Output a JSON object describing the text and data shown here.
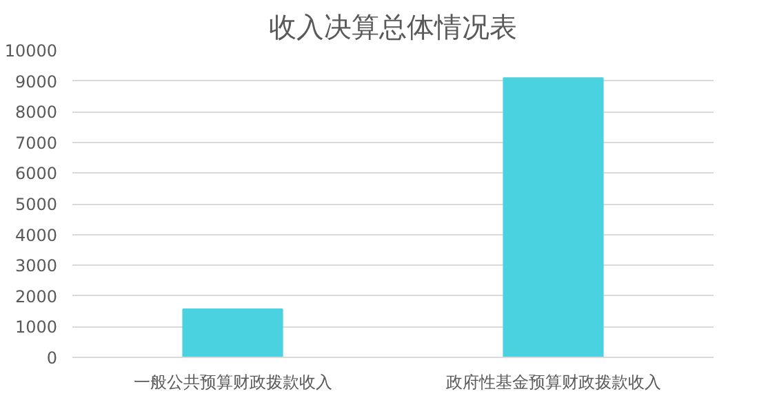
{
  "chart_data": {
    "type": "bar",
    "title": "收入决算总体情况表",
    "categories": [
      "一般公共预算财政拨款收入",
      "政府性基金预算财政拨款收入"
    ],
    "values": [
      1570,
      9100
    ],
    "color": "#4bd2e0",
    "ylim": [
      0,
      10000
    ],
    "yticks": [
      0,
      1000,
      2000,
      3000,
      4000,
      5000,
      6000,
      7000,
      8000,
      9000,
      10000
    ],
    "grid": "y"
  }
}
